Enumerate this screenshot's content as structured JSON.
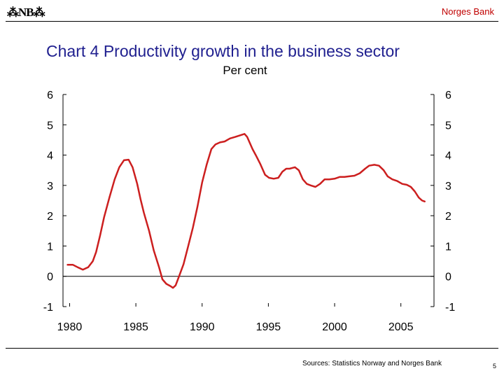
{
  "header": {
    "logo_text": "⁂NB⁂",
    "bank_name": "Norges Bank"
  },
  "footer": {
    "source": "Sources: Statistics Norway and Norges Bank",
    "page_number": "5"
  },
  "colors": {
    "title": "#1f1f8f",
    "series_line": "#cc1f1f",
    "bank_name": "#c00000"
  },
  "chart_data": {
    "type": "line",
    "title": "Chart 4 Productivity growth in the business sector",
    "subtitle": "Per cent",
    "xlabel": "",
    "ylabel": "",
    "xlim": [
      1979.5,
      2007.5
    ],
    "ylim": [
      -1,
      6
    ],
    "yticks": [
      6,
      5,
      4,
      3,
      2,
      1,
      0,
      -1
    ],
    "xticks": [
      1980,
      1985,
      1990,
      1995,
      2000,
      2005
    ],
    "grid": false,
    "legend": "none",
    "secondary_y_axis": true,
    "series": [
      {
        "name": "",
        "x": [
          1979.85,
          1980.25,
          1980.6,
          1981.0,
          1981.4,
          1981.75,
          1982.0,
          1982.3,
          1982.6,
          1983.0,
          1983.4,
          1983.75,
          1984.1,
          1984.45,
          1984.75,
          1985.1,
          1985.35,
          1985.6,
          1986.0,
          1986.35,
          1986.75,
          1987.0,
          1987.3,
          1987.6,
          1987.8,
          1988.0,
          1988.3,
          1988.6,
          1988.95,
          1989.3,
          1989.65,
          1990.0,
          1990.35,
          1990.7,
          1991.0,
          1991.35,
          1991.7,
          1992.1,
          1992.5,
          1992.85,
          1993.2,
          1993.4,
          1993.6,
          1993.8,
          1994.05,
          1994.4,
          1994.75,
          1995.05,
          1995.4,
          1995.75,
          1996.05,
          1996.35,
          1996.6,
          1997.0,
          1997.3,
          1997.6,
          1997.9,
          1998.2,
          1998.55,
          1998.9,
          1999.25,
          1999.6,
          2000.0,
          2000.4,
          2000.75,
          2001.1,
          2001.5,
          2001.9,
          2002.3,
          2002.6,
          2003.0,
          2003.35,
          2003.7,
          2004.0,
          2004.35,
          2004.7,
          2005.1,
          2005.45,
          2005.75,
          2006.05,
          2006.35,
          2006.6,
          2006.8
        ],
        "y": [
          0.38,
          0.38,
          0.3,
          0.22,
          0.3,
          0.5,
          0.8,
          1.35,
          1.95,
          2.6,
          3.2,
          3.6,
          3.83,
          3.85,
          3.6,
          3.05,
          2.55,
          2.1,
          1.5,
          0.85,
          0.3,
          -0.1,
          -0.25,
          -0.32,
          -0.38,
          -0.3,
          0.05,
          0.4,
          1.0,
          1.6,
          2.3,
          3.1,
          3.7,
          4.2,
          4.35,
          4.42,
          4.45,
          4.55,
          4.6,
          4.65,
          4.7,
          4.6,
          4.4,
          4.2,
          4.0,
          3.7,
          3.35,
          3.25,
          3.22,
          3.25,
          3.45,
          3.55,
          3.55,
          3.6,
          3.5,
          3.2,
          3.05,
          3.0,
          2.95,
          3.05,
          3.2,
          3.2,
          3.22,
          3.28,
          3.28,
          3.3,
          3.32,
          3.4,
          3.55,
          3.65,
          3.68,
          3.65,
          3.5,
          3.3,
          3.2,
          3.15,
          3.05,
          3.02,
          2.95,
          2.8,
          2.6,
          2.5,
          2.47
        ]
      }
    ]
  }
}
